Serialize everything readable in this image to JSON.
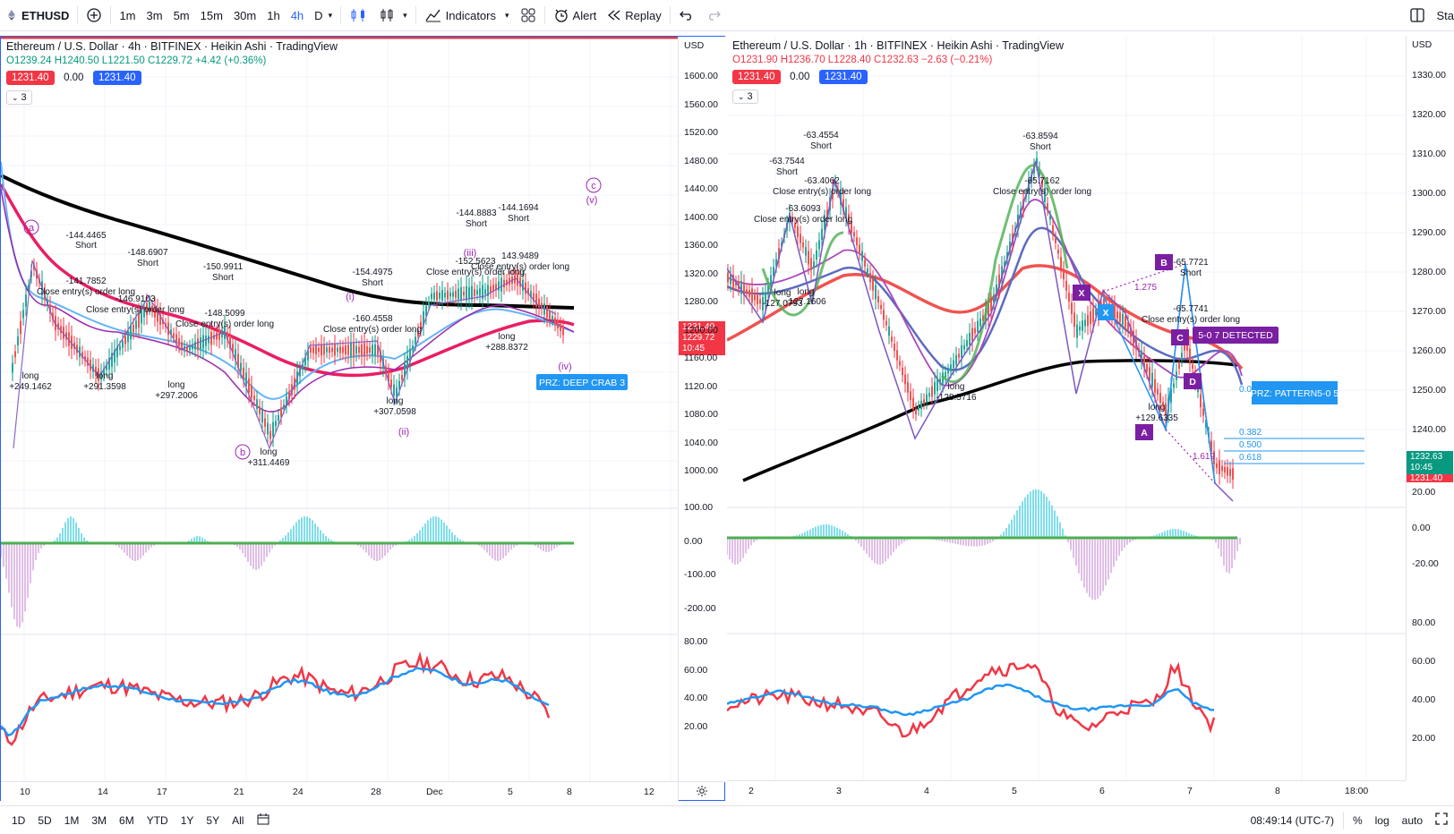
{
  "toolbar": {
    "symbol": "ETHUSD",
    "intervals": [
      "1m",
      "3m",
      "5m",
      "15m",
      "30m",
      "1h",
      "4h",
      "D"
    ],
    "active_interval": "4h",
    "indicators": "Indicators",
    "alert": "Alert",
    "replay": "Replay",
    "right_label": "Sta"
  },
  "left_chart": {
    "title": "Ethereum / U.S. Dollar · 4h · BITFINEX · Heikin Ashi · TradingView",
    "ohlc": {
      "o": "O1239.24",
      "h": "H1240.50",
      "l": "L1221.50",
      "c": "C1229.72",
      "chg": "+4.42 (+0.36%)"
    },
    "sell_price": "1231.40",
    "spread": "0.00",
    "buy_price": "1231.40",
    "collapse": "3",
    "currency": "USD",
    "price_ticks": [
      "1600.00",
      "1560.00",
      "1520.00",
      "1480.00",
      "1440.00",
      "1400.00",
      "1360.00",
      "1320.00",
      "1280.00",
      "1200.00",
      "1160.00",
      "1120.00",
      "1080.00",
      "1040.00",
      "1000.00"
    ],
    "price_tag": "1231.40",
    "price_tag2": "1229.72",
    "price_tag3": "10:45",
    "osc_ticks": [
      "100.00",
      "0.00",
      "-100.00",
      "-200.00"
    ],
    "rsi_ticks": [
      "80.00",
      "60.00",
      "40.00",
      "20.00"
    ],
    "x_ticks": [
      "10",
      "14",
      "17",
      "21",
      "24",
      "28",
      "Dec",
      "5",
      "8",
      "12"
    ],
    "annotations": [
      "-144.4465",
      "Short",
      "-141.7852",
      "Close entry(s) order long",
      "-148.6907",
      "Short",
      "-146.9103",
      "Close entry(s) order long",
      "-150.9911",
      "Short",
      "-148.5099",
      "Close entry(s) order long",
      "-154.4975",
      "Short",
      "-160.4558",
      "Close entry(s) order long",
      "-144.8883",
      "Short",
      "-144.1694",
      "Short",
      "-152.5623",
      "Close entry(s) order long",
      "143.9489",
      "Close entry(s) order long",
      "long",
      "+249.1462",
      "long",
      "+291.3598",
      "long",
      "+297.2006",
      "long",
      "+311.4469",
      "long",
      "+307.0598",
      "long",
      "+288.8372"
    ],
    "waves": [
      "a",
      "b",
      "c",
      "(i)",
      "(ii)",
      "(iii)",
      "(iv)",
      "(v)"
    ],
    "prz_label": "PRZ: DEEP CRAB 3"
  },
  "right_chart": {
    "title": "Ethereum / U.S. Dollar · 1h · BITFINEX · Heikin Ashi · TradingView",
    "ohlc": {
      "o": "O1231.90",
      "h": "H1236.70",
      "l": "L1228.40",
      "c": "C1232.63",
      "chg": "−2.63 (−0.21%)"
    },
    "sell_price": "1231.40",
    "spread": "0.00",
    "buy_price": "1231.40",
    "collapse": "3",
    "currency": "USD",
    "price_ticks": [
      "1330.00",
      "1320.00",
      "1310.00",
      "1300.00",
      "1290.00",
      "1280.00",
      "1270.00",
      "1260.00",
      "1250.00",
      "1240.00"
    ],
    "price_tag": "1232.63",
    "price_tag2": "10:45",
    "price_tag3": "1231.40",
    "osc_ticks": [
      "20.00",
      "0.00",
      "-20.00"
    ],
    "rsi_ticks": [
      "80.00",
      "60.00",
      "40.00",
      "20.00"
    ],
    "x_ticks": [
      "2",
      "3",
      "4",
      "5",
      "6",
      "7",
      "8",
      "18:00"
    ],
    "annotations": [
      "-63.4554",
      "Short",
      "-63.7544",
      "Short",
      "-63.4062",
      "Close entry(s) order long",
      "-63.6093",
      "Close entry(s) order long",
      "-63.8594",
      "Short",
      "-65.7162",
      "Close entry(s) order long",
      "-65.7721",
      "Short",
      "-65.7741",
      "Close entry(s) order long",
      "long",
      "-127.1606",
      "long",
      "-127.0793",
      "long",
      "-128.5716",
      "long",
      "+129.6335"
    ],
    "fib": [
      "1.275",
      "1.619",
      "0.382",
      "0.500",
      "0.618",
      "0.0"
    ],
    "pattern": "PRZ: PATTERN5-0 5",
    "detected": "5-0 7 DETECTED",
    "points": [
      "B",
      "X",
      "X",
      "A",
      "D",
      "C"
    ]
  },
  "bottom": {
    "ranges": [
      "1D",
      "5D",
      "1M",
      "3M",
      "6M",
      "YTD",
      "1Y",
      "5Y",
      "All"
    ],
    "time": "08:49:14 (UTC-7)",
    "pct": "%",
    "log": "log",
    "auto": "auto"
  },
  "colors": {
    "accent": "#2962ff",
    "up": "#089981",
    "down": "#f23645"
  }
}
